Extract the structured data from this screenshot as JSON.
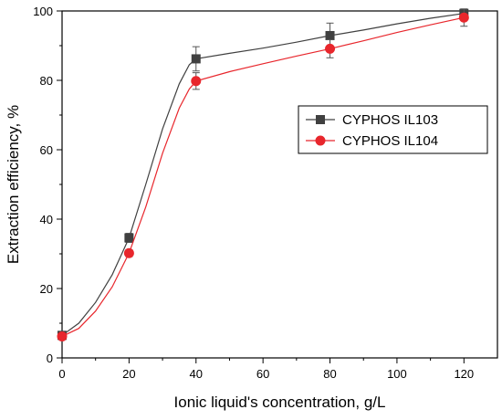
{
  "chart_data": {
    "type": "line",
    "xlabel": "Ionic liquid's concentration, g/L",
    "ylabel": "Extraction efficiency, %",
    "xlim": [
      0,
      130
    ],
    "ylim": [
      0,
      100
    ],
    "x_ticks": [
      0,
      20,
      40,
      60,
      80,
      100,
      120
    ],
    "y_ticks": [
      0,
      20,
      40,
      60,
      80,
      100
    ],
    "grid": false,
    "legend_position": "center-right",
    "series": [
      {
        "name": "CYPHOS IL103",
        "marker": "square",
        "color": "#404040",
        "x": [
          0,
          20,
          40,
          80,
          120
        ],
        "y": [
          6.5,
          34.6,
          86.2,
          92.9,
          99.3
        ],
        "error": [
          0.6,
          1.3,
          3.5,
          3.6,
          0.6
        ],
        "fit_curve": [
          [
            0,
            6.5
          ],
          [
            5,
            10
          ],
          [
            10,
            16
          ],
          [
            15,
            24
          ],
          [
            20,
            34.6
          ],
          [
            25,
            50
          ],
          [
            30,
            66
          ],
          [
            35,
            79
          ],
          [
            38,
            84.5
          ],
          [
            40,
            86.2
          ],
          [
            50,
            87.8
          ],
          [
            60,
            89.3
          ],
          [
            70,
            91
          ],
          [
            80,
            92.9
          ],
          [
            90,
            94.5
          ],
          [
            100,
            96.3
          ],
          [
            110,
            97.9
          ],
          [
            120,
            99.3
          ]
        ]
      },
      {
        "name": "CYPHOS IL104",
        "marker": "circle",
        "color": "#e8262c",
        "x": [
          0,
          20,
          40,
          80,
          120
        ],
        "y": [
          6.2,
          30.2,
          79.8,
          89.1,
          98.1
        ],
        "error": [
          0.6,
          1.0,
          2.4,
          2.6,
          2.5
        ],
        "fit_curve": [
          [
            0,
            6.2
          ],
          [
            5,
            8.5
          ],
          [
            10,
            13.5
          ],
          [
            15,
            20.5
          ],
          [
            20,
            30.2
          ],
          [
            25,
            43.5
          ],
          [
            30,
            59
          ],
          [
            35,
            72
          ],
          [
            38,
            77.5
          ],
          [
            40,
            79.8
          ],
          [
            50,
            82.5
          ],
          [
            60,
            84.8
          ],
          [
            70,
            87
          ],
          [
            80,
            89.1
          ],
          [
            90,
            91.4
          ],
          [
            100,
            93.8
          ],
          [
            110,
            96
          ],
          [
            120,
            98.1
          ]
        ]
      }
    ]
  }
}
